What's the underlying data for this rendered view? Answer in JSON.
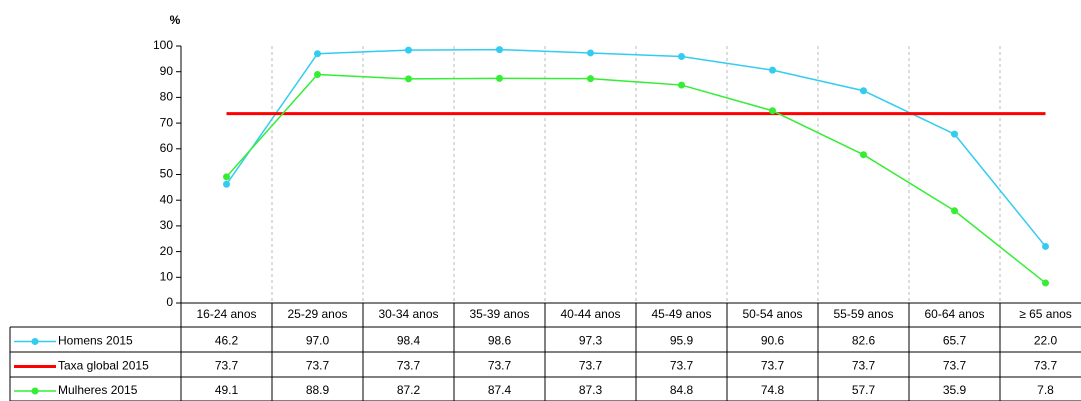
{
  "chart_data": {
    "type": "line",
    "y_label": "%",
    "categories": [
      "16-24 anos",
      "25-29 anos",
      "30-34 anos",
      "35-39 anos",
      "40-44 anos",
      "45-49 anos",
      "50-54 anos",
      "55-59 anos",
      "60-64 anos",
      "≥ 65 anos"
    ],
    "series": [
      {
        "name": "Homens 2015",
        "color": "#33ccf0",
        "markers": true,
        "values": [
          46.2,
          97,
          98.4,
          98.6,
          97.3,
          95.9,
          90.6,
          82.6,
          65.7,
          22
        ],
        "value_labels": [
          "46.2",
          "97.0",
          "98.4",
          "98.6",
          "97.3",
          "95.9",
          "90.6",
          "82.6",
          "65.7",
          "22.0"
        ]
      },
      {
        "name": "Taxa global 2015",
        "color": "#ff0000",
        "markers": false,
        "values": [
          73.7,
          73.7,
          73.7,
          73.7,
          73.7,
          73.7,
          73.7,
          73.7,
          73.7,
          73.7
        ],
        "value_labels": [
          "73.7",
          "73.7",
          "73.7",
          "73.7",
          "73.7",
          "73.7",
          "73.7",
          "73.7",
          "73.7",
          "73.7"
        ]
      },
      {
        "name": "Mulheres 2015",
        "color": "#33ee33",
        "markers": true,
        "values": [
          49.1,
          88.9,
          87.2,
          87.4,
          87.3,
          84.8,
          74.8,
          57.7,
          35.9,
          7.8
        ],
        "value_labels": [
          "49.1",
          "88.9",
          "87.2",
          "87.4",
          "87.3",
          "84.8",
          "74.8",
          "57.7",
          "35.9",
          "7.8"
        ]
      }
    ],
    "ylim": [
      0,
      100
    ],
    "yticks": [
      0,
      10,
      20,
      30,
      40,
      50,
      60,
      70,
      80,
      90,
      100
    ]
  }
}
